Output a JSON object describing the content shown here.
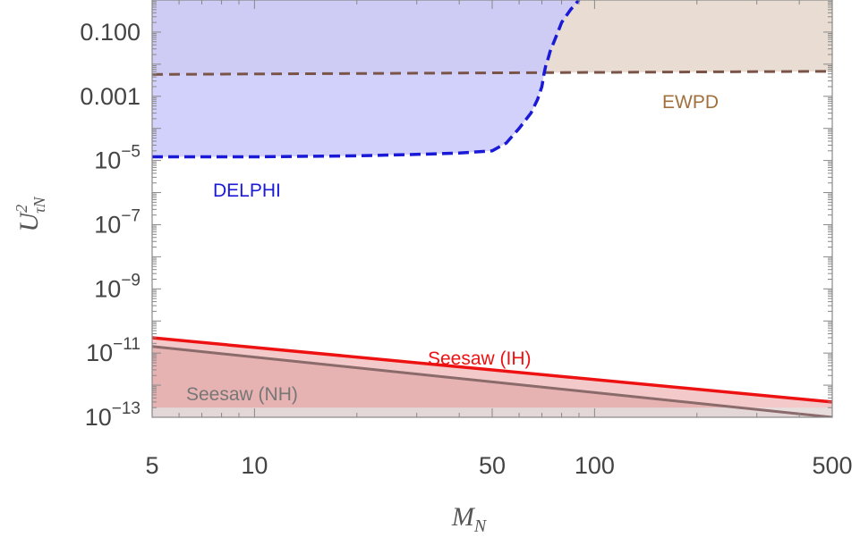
{
  "chart_data": {
    "type": "area",
    "xlabel": "M",
    "xlabel_sub": "N",
    "ylabel": "U",
    "ylabel_sup": "2",
    "ylabel_sub": "τN",
    "x_scale": "log",
    "y_scale": "log",
    "xlim": [
      5,
      500
    ],
    "ylim": [
      1e-13,
      1.0
    ],
    "x_ticks": [
      {
        "value": 5,
        "label": "5"
      },
      {
        "value": 10,
        "label": "10"
      },
      {
        "value": 50,
        "label": "50"
      },
      {
        "value": 100,
        "label": "100"
      },
      {
        "value": 500,
        "label": "500"
      }
    ],
    "y_ticks": [
      {
        "value": 0.1,
        "base": "0.100",
        "exp": ""
      },
      {
        "value": 0.001,
        "base": "0.001",
        "exp": ""
      },
      {
        "value": 1e-05,
        "base": "10",
        "exp": "−5"
      },
      {
        "value": 1e-07,
        "base": "10",
        "exp": "−7"
      },
      {
        "value": 1e-09,
        "base": "10",
        "exp": "−9"
      },
      {
        "value": 1e-11,
        "base": "10",
        "exp": "−11"
      },
      {
        "value": 1e-13,
        "base": "10",
        "exp": "−13"
      }
    ],
    "grid": false,
    "series": [
      {
        "name": "DELPHI",
        "color": "#1a1ad6",
        "fill": "#c9c9fa",
        "style": "dashed",
        "x": [
          5,
          10,
          20,
          30,
          40,
          50,
          55,
          60,
          65,
          68,
          70,
          71,
          72,
          73,
          74,
          76,
          78,
          80,
          85,
          90
        ],
        "y": [
          1.3e-05,
          1.3e-05,
          1.4e-05,
          1.55e-05,
          1.7e-05,
          2e-05,
          3.5e-05,
          0.0001,
          0.0003,
          0.0008,
          0.002,
          0.005,
          0.01,
          0.015,
          0.025,
          0.05,
          0.1,
          0.2,
          0.5,
          1.0
        ]
      },
      {
        "name": "EWPD",
        "color": "#7a5448",
        "fill": "#e9ddd3",
        "style": "dashed",
        "x": [
          5,
          500
        ],
        "y": [
          0.0048,
          0.006
        ]
      },
      {
        "name": "Seesaw (IH)",
        "color": "#ee1111",
        "fill": "#f4c9c9",
        "style": "solid",
        "x": [
          5,
          500
        ],
        "y": [
          3e-11,
          3e-13
        ]
      },
      {
        "name": "Seesaw (NH)",
        "color": "#8a6a6a",
        "fill": "#e6b2b2",
        "style": "solid",
        "x": [
          5,
          500
        ],
        "y": [
          1.6e-11,
          1e-13
        ]
      }
    ],
    "floor_band": {
      "color": "#e3e3e3",
      "y_top": 2e-13
    },
    "annotations": [
      {
        "text": "DELPHI",
        "color": "#1a1ad6"
      },
      {
        "text": "EWPD",
        "color": "#a0703e"
      },
      {
        "text": "Seesaw (IH)",
        "color": "#ee1111"
      },
      {
        "text": "Seesaw (NH)",
        "color": "#777777"
      }
    ]
  }
}
